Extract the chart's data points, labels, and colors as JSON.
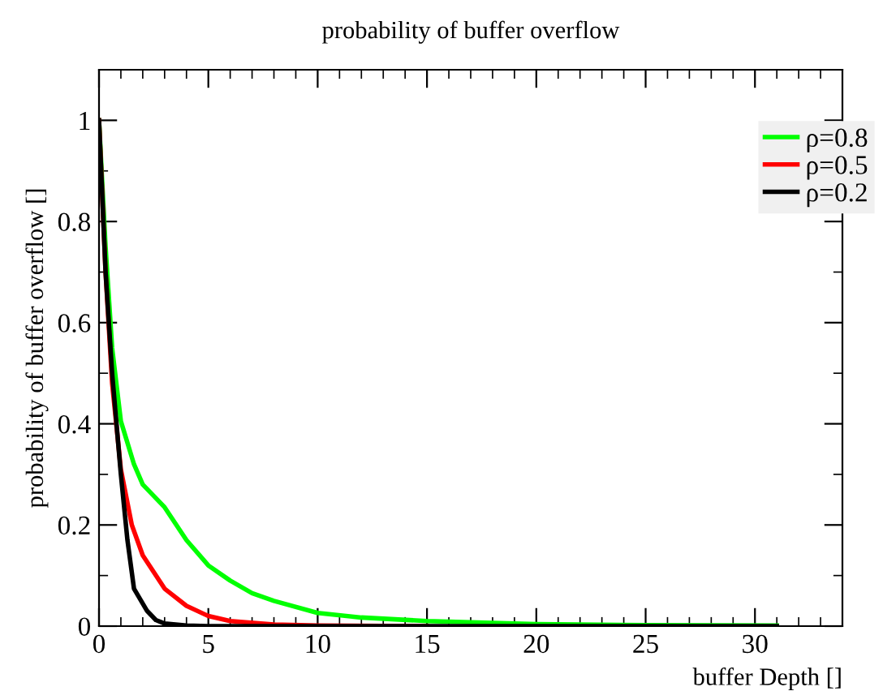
{
  "chart_data": {
    "type": "line",
    "title": "probability of buffer overflow",
    "xlabel": "buffer Depth []",
    "ylabel": "probability of buffer overflow []",
    "xlim": [
      0,
      34
    ],
    "xticks": [
      0,
      5,
      10,
      15,
      20,
      25,
      30
    ],
    "ylim": [
      0,
      1.1
    ],
    "yticks": [
      0,
      0.2,
      0.4,
      0.6,
      0.8,
      1
    ],
    "grid": false,
    "legend": "top right",
    "marker": "none",
    "line_style": "solid",
    "series": [
      {
        "name": "ρ=0.8",
        "color": "#00ff00",
        "x": [
          0,
          0.3,
          0.6,
          1,
          1.6,
          2,
          3,
          4,
          5,
          6,
          7,
          8,
          10,
          12,
          15,
          20,
          25,
          31
        ],
        "values": [
          1,
          0.75,
          0.55,
          0.405,
          0.32,
          0.28,
          0.235,
          0.17,
          0.12,
          0.09,
          0.065,
          0.05,
          0.026,
          0.017,
          0.01,
          0.004,
          0.002,
          0.001
        ]
      },
      {
        "name": "ρ=0.5",
        "color": "#ff0000",
        "x": [
          0,
          0.3,
          0.6,
          1,
          1.5,
          2,
          3,
          4,
          5,
          6,
          8,
          10,
          15
        ],
        "values": [
          1,
          0.7,
          0.48,
          0.31,
          0.2,
          0.14,
          0.074,
          0.04,
          0.02,
          0.01,
          0.003,
          0.001,
          0
        ]
      },
      {
        "name": "ρ=0.2",
        "color": "#000000",
        "x": [
          0,
          0.3,
          0.6,
          0.8,
          1,
          1.3,
          1.6,
          2.2,
          2.6,
          3,
          4,
          5,
          10,
          15,
          20,
          25,
          31
        ],
        "values": [
          1,
          0.7,
          0.5,
          0.4,
          0.3,
          0.17,
          0.074,
          0.03,
          0.012,
          0.005,
          0.001,
          0,
          0,
          0,
          0,
          0,
          0
        ]
      }
    ]
  }
}
